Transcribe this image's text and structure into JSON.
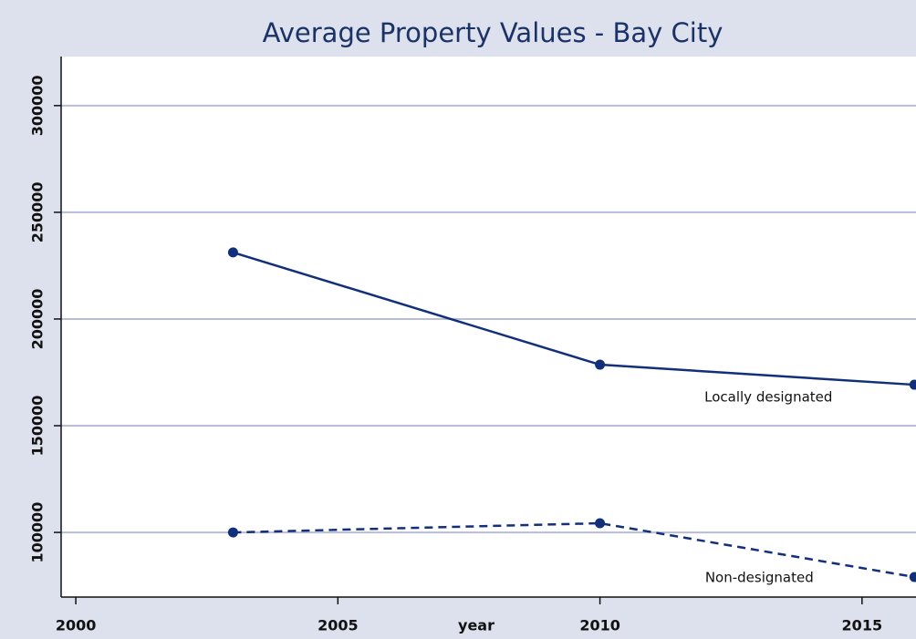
{
  "chart_data": {
    "type": "line",
    "title": "Average Property Values - Bay City",
    "x_label": "year",
    "x": [
      2003,
      2010,
      2016
    ],
    "series": [
      {
        "name": "Locally designated",
        "color": "#12307a",
        "linestyle": "solid",
        "values": [
          231200,
          178600,
          169200
        ]
      },
      {
        "name": "Non-designated",
        "color": "#12307a",
        "linestyle": "dashed",
        "values": [
          100000,
          104300,
          79100
        ]
      }
    ],
    "xlim": [
      1999.72,
      2016.03
    ],
    "xticks": [
      2000,
      2005,
      2010,
      2015
    ],
    "ylim": [
      69700,
      323000
    ],
    "yticks": [
      100000,
      150000,
      200000,
      250000,
      300000
    ],
    "grid": true,
    "grid_color": "#b7bcd8"
  }
}
